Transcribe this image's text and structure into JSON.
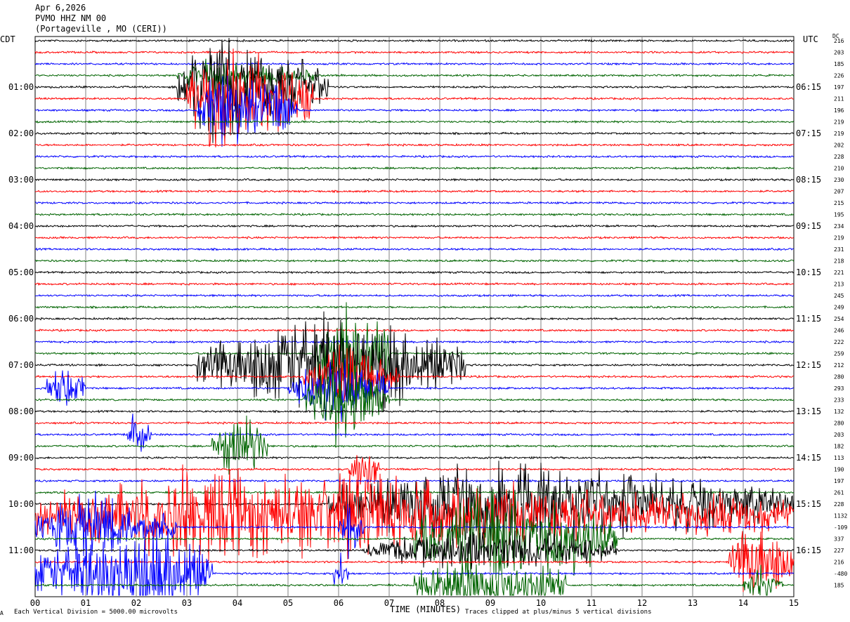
{
  "header": {
    "date": "Apr 6,2026",
    "station": "PVMO HHZ NM 00",
    "location": "(Portageville , MO (CERI))"
  },
  "axis": {
    "left_tz": "CDT",
    "right_tz": "UTC",
    "dc_label": "DC",
    "xlabel": "TIME (MINUTES)",
    "scale_note": "Each Vertical Division = 5000.00 microvolts",
    "clip_note": "Traces clipped at plus/minus 5 vertical divisions",
    "corner_mark": "A"
  },
  "colors": {
    "black": "#000000",
    "red": "#ff0000",
    "blue": "#0000ff",
    "green": "#006400",
    "grid": "#808080"
  },
  "chart_data": {
    "type": "line",
    "title": "",
    "xlim": [
      0,
      15
    ],
    "x_ticks": [
      "00",
      "01",
      "02",
      "03",
      "04",
      "05",
      "06",
      "07",
      "08",
      "09",
      "10",
      "11",
      "12",
      "13",
      "14",
      "15"
    ],
    "traces_per_hour": 4,
    "trace_color_cycle": [
      "black",
      "red",
      "blue",
      "green"
    ],
    "left_hour_labels": [
      {
        "trace": 4,
        "text": "01:00"
      },
      {
        "trace": 8,
        "text": "02:00"
      },
      {
        "trace": 12,
        "text": "03:00"
      },
      {
        "trace": 16,
        "text": "04:00"
      },
      {
        "trace": 20,
        "text": "05:00"
      },
      {
        "trace": 24,
        "text": "06:00"
      },
      {
        "trace": 28,
        "text": "07:00"
      },
      {
        "trace": 32,
        "text": "08:00"
      },
      {
        "trace": 36,
        "text": "09:00"
      },
      {
        "trace": 40,
        "text": "10:00"
      },
      {
        "trace": 44,
        "text": "11:00"
      }
    ],
    "right_hour_labels": [
      {
        "trace": 4,
        "text": "06:15"
      },
      {
        "trace": 8,
        "text": "07:15"
      },
      {
        "trace": 12,
        "text": "08:15"
      },
      {
        "trace": 16,
        "text": "09:15"
      },
      {
        "trace": 20,
        "text": "10:15"
      },
      {
        "trace": 24,
        "text": "11:15"
      },
      {
        "trace": 28,
        "text": "12:15"
      },
      {
        "trace": 32,
        "text": "13:15"
      },
      {
        "trace": 36,
        "text": "14:15"
      },
      {
        "trace": 40,
        "text": "15:15"
      },
      {
        "trace": 44,
        "text": "16:15"
      }
    ],
    "dc_offsets": [
      "216",
      "203",
      "185",
      "226",
      "197",
      "211",
      "196",
      "219",
      "219",
      "202",
      "228",
      "210",
      "230",
      "207",
      "215",
      "195",
      "234",
      "219",
      "231",
      "218",
      "221",
      "213",
      "245",
      "249",
      "254",
      "246",
      "222",
      "259",
      "212",
      "280",
      "293",
      "233",
      "132",
      "280",
      "203",
      "182",
      "113",
      "190",
      "197",
      "261",
      "228",
      "1132",
      "-109",
      "337",
      "227",
      "216",
      "-480",
      "185"
    ],
    "events": [
      {
        "trace": 4,
        "start": 2.8,
        "end": 5.8,
        "peak": 3.5,
        "amp": 5,
        "clipped": true
      },
      {
        "trace": 3,
        "start": 2.8,
        "end": 5.5,
        "peak": 3.5,
        "amp": 1.5
      },
      {
        "trace": 5,
        "start": 3.0,
        "end": 5.5,
        "peak": 3.6,
        "amp": 5,
        "clipped": true
      },
      {
        "trace": 6,
        "start": 3.2,
        "end": 5.2,
        "peak": 3.8,
        "amp": 4,
        "clipped": true
      },
      {
        "trace": 28,
        "start": 3.2,
        "end": 8.5,
        "peak": 6.0,
        "amp": 5,
        "clipped": true
      },
      {
        "trace": 27,
        "start": 5.5,
        "end": 7.0,
        "peak": 6.3,
        "amp": 5,
        "clipped": true
      },
      {
        "trace": 29,
        "start": 5.3,
        "end": 7.2,
        "peak": 6.0,
        "amp": 3,
        "clipped": true
      },
      {
        "trace": 30,
        "start": 0.2,
        "end": 1.0,
        "peak": 0.6,
        "amp": 2
      },
      {
        "trace": 30,
        "start": 5.0,
        "end": 7.0,
        "peak": 6.0,
        "amp": 3,
        "clipped": true
      },
      {
        "trace": 31,
        "start": 5.3,
        "end": 7.0,
        "peak": 6.0,
        "amp": 4,
        "clipped": true
      },
      {
        "trace": 34,
        "start": 1.8,
        "end": 2.3,
        "peak": 2.0,
        "amp": 2.5
      },
      {
        "trace": 35,
        "start": 3.5,
        "end": 4.6,
        "peak": 4.1,
        "amp": 3
      },
      {
        "trace": 37,
        "start": 6.2,
        "end": 6.8,
        "peak": 6.5,
        "amp": 3
      },
      {
        "trace": 40,
        "start": 5.8,
        "end": 15.0,
        "peak": 9.0,
        "amp": 4,
        "clipped": true
      },
      {
        "trace": 41,
        "start": 0.0,
        "end": 15.0,
        "peak": 3.0,
        "amp": 4,
        "clipped": true
      },
      {
        "trace": 42,
        "start": 0.0,
        "end": 2.8,
        "peak": 1.0,
        "amp": 3,
        "clipped": true
      },
      {
        "trace": 42,
        "start": 6.0,
        "end": 6.5,
        "peak": 6.2,
        "amp": 2.5
      },
      {
        "trace": 43,
        "start": 7.5,
        "end": 11.5,
        "peak": 9.0,
        "amp": 5,
        "clipped": true
      },
      {
        "trace": 44,
        "start": 6.5,
        "end": 11.5,
        "peak": 9.0,
        "amp": 2
      },
      {
        "trace": 45,
        "start": 13.7,
        "end": 15.0,
        "peak": 14.2,
        "amp": 4,
        "clipped": true
      },
      {
        "trace": 46,
        "start": 0.0,
        "end": 3.5,
        "peak": 2.5,
        "amp": 5,
        "clipped": true
      },
      {
        "trace": 46,
        "start": 5.9,
        "end": 6.2,
        "peak": 6.0,
        "amp": 2
      },
      {
        "trace": 47,
        "start": 7.5,
        "end": 10.5,
        "peak": 9.0,
        "amp": 3,
        "clipped": true
      },
      {
        "trace": 47,
        "start": 14.0,
        "end": 14.8,
        "peak": 14.3,
        "amp": 2
      }
    ]
  }
}
